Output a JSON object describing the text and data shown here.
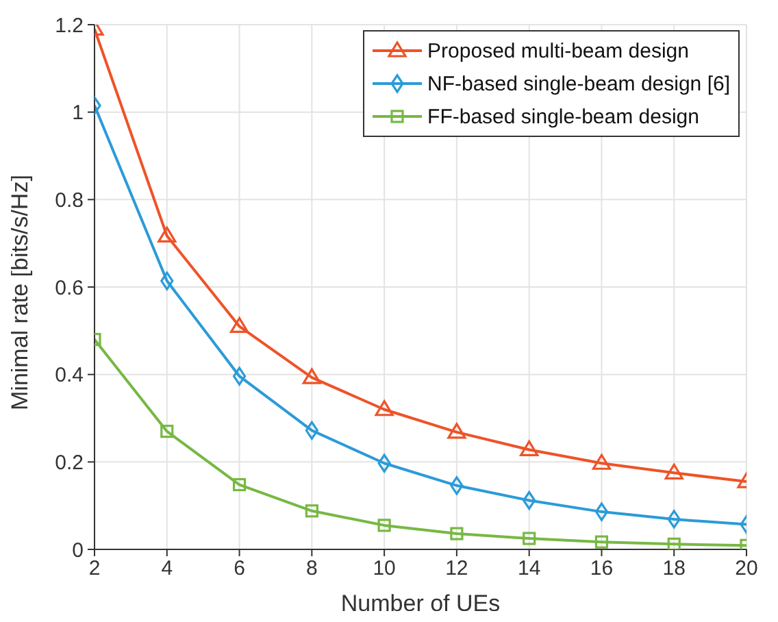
{
  "chart_data": {
    "type": "line",
    "xlabel": "Number of UEs",
    "ylabel": "Minimal rate [bits/s/Hz]",
    "x": [
      2,
      4,
      6,
      8,
      10,
      12,
      14,
      16,
      18,
      20
    ],
    "series": [
      {
        "name": "Proposed multi-beam design",
        "color": "#ee5328",
        "marker": "triangle",
        "values": [
          1.19,
          0.717,
          0.51,
          0.393,
          0.32,
          0.268,
          0.228,
          0.197,
          0.175,
          0.155
        ]
      },
      {
        "name": "NF-based single-beam design [6]",
        "color": "#2b9bd8",
        "marker": "diamond",
        "values": [
          1.015,
          0.614,
          0.396,
          0.272,
          0.197,
          0.146,
          0.112,
          0.086,
          0.069,
          0.057
        ]
      },
      {
        "name": "FF-based single-beam design",
        "color": "#77b843",
        "marker": "square",
        "values": [
          0.48,
          0.27,
          0.148,
          0.088,
          0.055,
          0.036,
          0.025,
          0.017,
          0.012,
          0.009
        ]
      }
    ],
    "xlim": [
      2,
      20
    ],
    "xticks": [
      2,
      4,
      6,
      8,
      10,
      12,
      14,
      16,
      18,
      20
    ],
    "ylim": [
      0,
      1.2
    ],
    "yticks": [
      0,
      0.2,
      0.4,
      0.6,
      0.8,
      1,
      1.2
    ],
    "grid": true,
    "legend": "top right",
    "line_style": "solid"
  }
}
